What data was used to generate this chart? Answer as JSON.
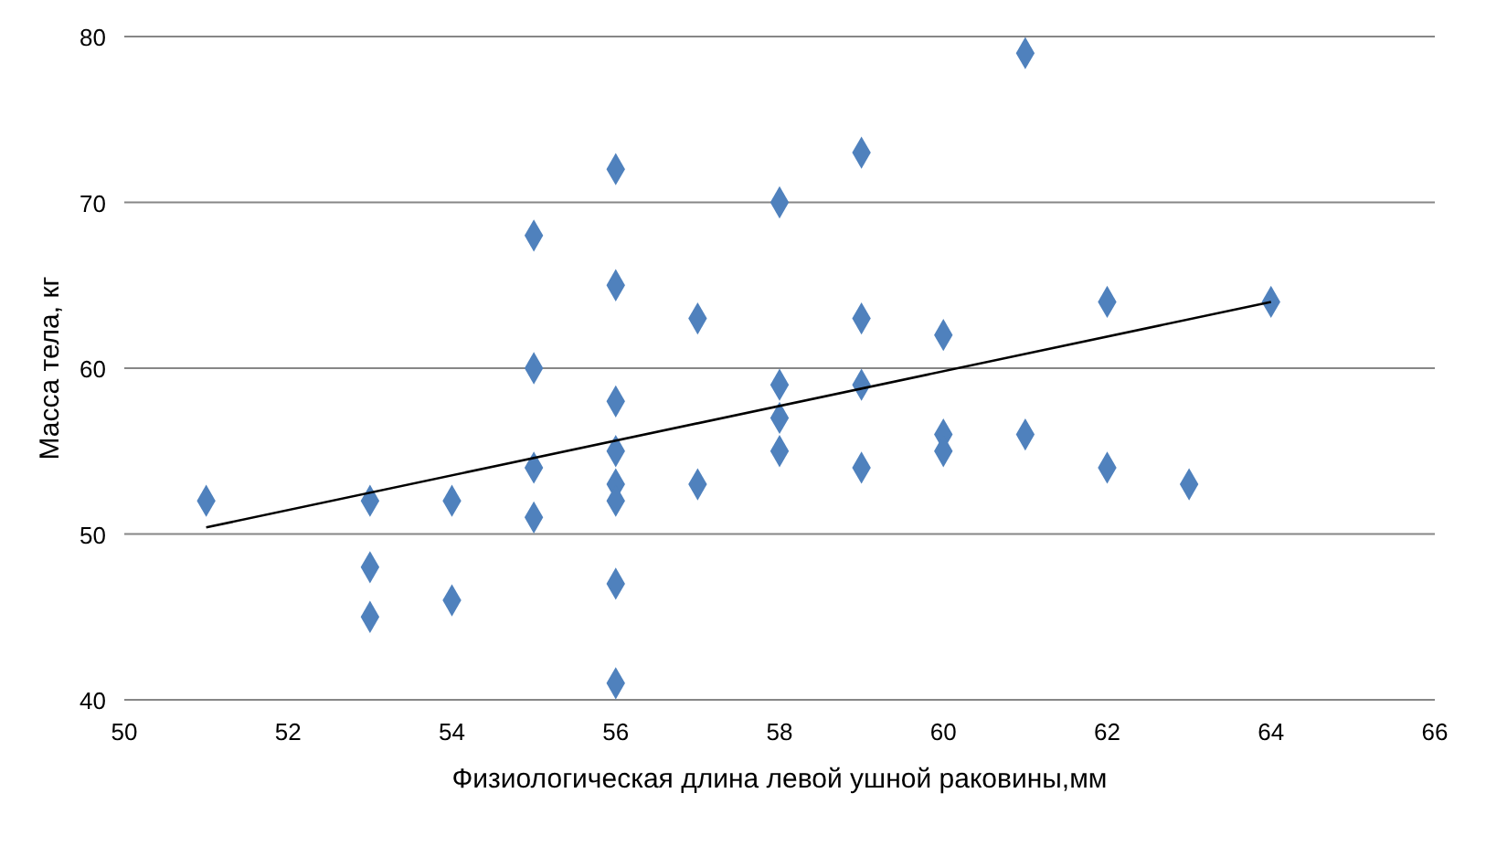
{
  "chart_data": {
    "type": "scatter",
    "xlabel": "Физиологическая длина левой ушной раковины,мм",
    "ylabel": "Масса тела, кг",
    "xlim": [
      50,
      66
    ],
    "xticks": [
      50,
      52,
      54,
      56,
      58,
      60,
      62,
      64,
      66
    ],
    "ylim": [
      40,
      80
    ],
    "yticks": [
      40,
      50,
      60,
      70,
      80
    ],
    "grid": "y",
    "marker": "diamond",
    "series": [
      {
        "color": "#4f81bd",
        "x": [
          51,
          53,
          53,
          53,
          54,
          54,
          55,
          55,
          55,
          55,
          56,
          56,
          56,
          56,
          56,
          56,
          56,
          56,
          57,
          57,
          58,
          58,
          58,
          58,
          59,
          59,
          59,
          59,
          60,
          60,
          60,
          61,
          61,
          62,
          62,
          63,
          64
        ],
        "values": [
          52,
          52,
          48,
          45,
          52,
          46,
          68,
          60,
          54,
          51,
          72,
          65,
          58,
          55,
          53,
          52,
          47,
          41,
          63,
          53,
          70,
          59,
          57,
          55,
          73,
          63,
          59,
          54,
          62,
          56,
          55,
          79,
          56,
          64,
          54,
          53,
          64
        ]
      },
      {
        "type": "line",
        "marker": "none",
        "color": "#000000",
        "x": [
          51,
          64
        ],
        "values": [
          50.4,
          64
        ]
      }
    ]
  }
}
